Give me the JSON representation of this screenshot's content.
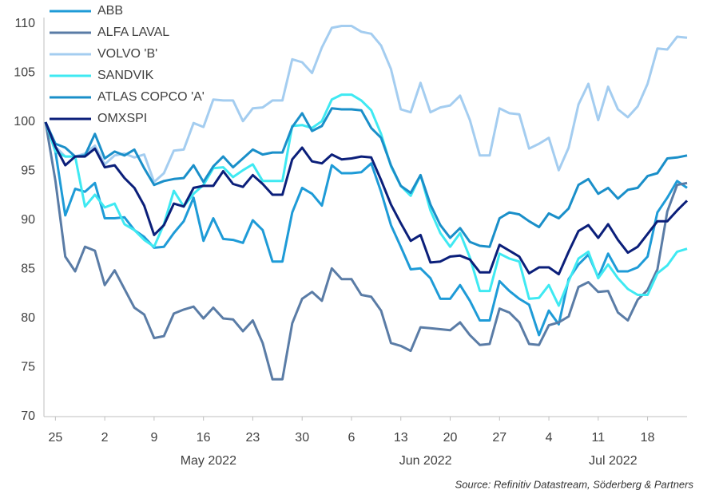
{
  "chart_data": {
    "type": "line",
    "x": [
      "2022-04-22",
      "2022-04-25",
      "2022-04-26",
      "2022-04-27",
      "2022-04-28",
      "2022-04-29",
      "2022-05-02",
      "2022-05-03",
      "2022-05-04",
      "2022-05-05",
      "2022-05-06",
      "2022-05-09",
      "2022-05-10",
      "2022-05-11",
      "2022-05-12",
      "2022-05-13",
      "2022-05-16",
      "2022-05-17",
      "2022-05-18",
      "2022-05-19",
      "2022-05-20",
      "2022-05-23",
      "2022-05-24",
      "2022-05-25",
      "2022-05-26",
      "2022-05-27",
      "2022-05-30",
      "2022-05-31",
      "2022-06-01",
      "2022-06-02",
      "2022-06-03",
      "2022-06-06",
      "2022-06-07",
      "2022-06-08",
      "2022-06-09",
      "2022-06-10",
      "2022-06-13",
      "2022-06-14",
      "2022-06-15",
      "2022-06-16",
      "2022-06-17",
      "2022-06-20",
      "2022-06-21",
      "2022-06-22",
      "2022-06-23",
      "2022-06-24",
      "2022-06-27",
      "2022-06-28",
      "2022-06-29",
      "2022-06-30",
      "2022-07-01",
      "2022-07-04",
      "2022-07-05",
      "2022-07-06",
      "2022-07-07",
      "2022-07-08",
      "2022-07-11",
      "2022-07-12",
      "2022-07-13",
      "2022-07-14",
      "2022-07-15",
      "2022-07-18",
      "2022-07-19",
      "2022-07-20",
      "2022-07-21",
      "2022-07-22"
    ],
    "xticks": [
      {
        "value": "2022-04-25",
        "label": "25"
      },
      {
        "value": "2022-05-02",
        "label": "2"
      },
      {
        "value": "2022-05-09",
        "label": "9"
      },
      {
        "value": "2022-05-16",
        "label": "16"
      },
      {
        "value": "2022-05-23",
        "label": "23"
      },
      {
        "value": "2022-05-30",
        "label": "30"
      },
      {
        "value": "2022-06-06",
        "label": "6"
      },
      {
        "value": "2022-06-13",
        "label": "13"
      },
      {
        "value": "2022-06-20",
        "label": "20"
      },
      {
        "value": "2022-06-27",
        "label": "27"
      },
      {
        "value": "2022-07-04",
        "label": "4"
      },
      {
        "value": "2022-07-11",
        "label": "11"
      },
      {
        "value": "2022-07-18",
        "label": "18"
      }
    ],
    "months": [
      {
        "value": "2022-05",
        "label": "May 2022"
      },
      {
        "value": "2022-06",
        "label": "Jun 2022"
      },
      {
        "value": "2022-07",
        "label": "Jul 2022"
      }
    ],
    "ylim": [
      70,
      110
    ],
    "yticks": [
      70,
      75,
      80,
      85,
      90,
      95,
      100,
      105,
      110
    ],
    "legend": "upper-left",
    "series": [
      {
        "name": "ABB",
        "color": "#1e9bd7",
        "values": [
          100,
          97,
          90.5,
          93.2,
          92.9,
          93.8,
          90.2,
          90.2,
          90.3,
          89,
          88.3,
          87.2,
          87.3,
          88.7,
          89.9,
          92.3,
          87.9,
          90.2,
          88.1,
          88,
          87.7,
          90,
          89,
          85.8,
          85.8,
          90.8,
          93.3,
          92.7,
          91.5,
          95.6,
          94.8,
          94.8,
          94.9,
          95.8,
          92.9,
          89.5,
          87.3,
          85,
          85.1,
          84.1,
          82,
          82,
          83.4,
          81.8,
          79.8,
          79.8,
          83.8,
          82.8,
          82,
          81.4,
          78.3,
          80.8,
          79.4,
          84,
          85.5,
          86.5,
          84.2,
          86.6,
          84.8,
          84.8,
          85.2,
          86.3,
          90.8,
          92.3,
          94,
          93.3
        ]
      },
      {
        "name": "ALFA LAVAL",
        "color": "#5a7ca6",
        "values": [
          100,
          94,
          86.3,
          84.8,
          87.3,
          86.9,
          83.4,
          84.9,
          83,
          81.1,
          80.4,
          78,
          78.2,
          80.5,
          80.9,
          81.2,
          80,
          81.1,
          80,
          79.9,
          78.7,
          79.8,
          77.5,
          73.8,
          73.8,
          79.5,
          82,
          82.7,
          81.8,
          85.1,
          84,
          84,
          82.4,
          82.2,
          80.8,
          77.5,
          77.2,
          76.7,
          79.1,
          79,
          78.9,
          78.8,
          79.6,
          78.3,
          77.3,
          77.4,
          81,
          80.6,
          79.6,
          77.4,
          77.3,
          79.3,
          79.6,
          80.2,
          83.2,
          83.7,
          82.7,
          82.8,
          80.6,
          79.8,
          81.9,
          82.9,
          85,
          90.9,
          93.6,
          93.8
        ]
      },
      {
        "name": "VOLVO 'B'",
        "color": "#a4cdf0",
        "values": [
          100,
          97.5,
          96.5,
          96.5,
          96.8,
          97.6,
          95.7,
          96.6,
          96.8,
          96.4,
          96.7,
          93.9,
          94.8,
          97.1,
          97.2,
          99.9,
          99.5,
          102.3,
          102.2,
          102.2,
          100.1,
          101.4,
          101.5,
          102.2,
          102.2,
          106.4,
          106.1,
          105,
          107.6,
          109.6,
          109.8,
          109.8,
          109.2,
          109,
          107.8,
          105.4,
          101.3,
          101,
          104,
          101,
          101.5,
          101.7,
          102.7,
          100.2,
          96.6,
          96.6,
          101.4,
          100.9,
          100.8,
          97.3,
          97.8,
          98.4,
          95.1,
          97.4,
          101.8,
          103.9,
          100.2,
          103.6,
          101.3,
          100.5,
          101.6,
          103.9,
          107.5,
          107.4,
          108.7,
          108.6
        ]
      },
      {
        "name": "SANDVIK",
        "color": "#3fe9f2",
        "values": [
          100,
          97,
          96.5,
          96.5,
          91.4,
          92.6,
          91.3,
          91.7,
          89.6,
          89,
          88,
          87.3,
          89.6,
          93,
          91.4,
          92.7,
          93.6,
          95.3,
          95.4,
          94.4,
          95.1,
          95.7,
          94,
          94,
          94,
          99.6,
          99.7,
          99.4,
          100.1,
          102.3,
          102.8,
          102.8,
          102.2,
          101.2,
          98.8,
          95.5,
          93.5,
          92.5,
          94.6,
          91,
          88.7,
          87.3,
          88.7,
          86.2,
          82.8,
          82.8,
          86.6,
          86.1,
          85.8,
          82,
          82.1,
          83.4,
          81.3,
          83.8,
          86.1,
          86.8,
          84.1,
          85.5,
          84.1,
          83,
          82.4,
          82.4,
          84.6,
          85.4,
          86.8,
          87.1
        ]
      },
      {
        "name": "ATLAS COPCO 'A'",
        "color": "#1a8fc9",
        "values": [
          100,
          97.8,
          97.4,
          96.5,
          96.6,
          98.8,
          96.3,
          97,
          96.6,
          97.2,
          95.3,
          93.6,
          94.0,
          94.2,
          94.3,
          95.6,
          93.9,
          95.5,
          96.5,
          95.4,
          96.3,
          97.2,
          96.7,
          96.9,
          96.9,
          99.5,
          100.9,
          99.1,
          99.6,
          101.4,
          101.3,
          101.3,
          101.2,
          99.4,
          98.4,
          95.6,
          93.5,
          92.8,
          94.6,
          91.6,
          89.5,
          88.2,
          89.2,
          87.8,
          87.4,
          87.3,
          90.2,
          90.8,
          90.6,
          89.9,
          89.3,
          90.7,
          90.2,
          91.2,
          93.6,
          94.2,
          92.7,
          93.3,
          92.2,
          93.1,
          93.3,
          94.5,
          94.8,
          96.3,
          96.4,
          96.6
        ]
      },
      {
        "name": "OMXSPI",
        "color": "#0b1f7a",
        "values": [
          100,
          97.5,
          95.6,
          96.5,
          96.5,
          97.3,
          95.4,
          95.6,
          94.3,
          93.3,
          91.5,
          88.5,
          89.5,
          91.7,
          91.4,
          93.3,
          93.5,
          93.5,
          95,
          93.7,
          93.4,
          94.6,
          93.7,
          92.6,
          92.6,
          96.2,
          97.4,
          96.0,
          95.8,
          96.7,
          96.2,
          96.3,
          96.5,
          96.4,
          94.1,
          91.6,
          89.7,
          87.9,
          88.5,
          85.7,
          85.8,
          86.3,
          86.4,
          86.0,
          84.7,
          84.7,
          87.5,
          86.9,
          86.3,
          84.6,
          85.2,
          85.2,
          84.5,
          86.8,
          88.9,
          89.5,
          88.2,
          89.6,
          88.0,
          86.7,
          87.3,
          88.6,
          89.9,
          89.9,
          91.0,
          92.0
        ]
      }
    ],
    "source": "Source: Refinitiv Datastream, Söderberg & Partners"
  }
}
